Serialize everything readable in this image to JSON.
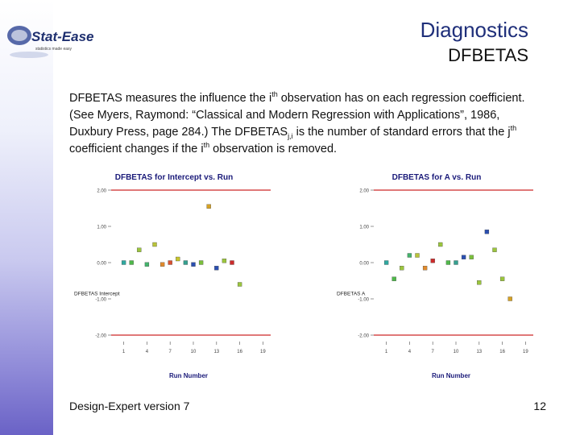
{
  "logo": {
    "name": "Stat-Ease",
    "tagline": "statistics made easy"
  },
  "header": {
    "title": "Diagnostics",
    "subtitle": "DFBETAS"
  },
  "body": {
    "p1": "DFBETAS measures the influence the i",
    "sup1": "th",
    "p2": " observation has on each regression coefficient.  (See Myers, Raymond: “Classical and Modern Regression with Applications”, 1986, Duxbury Press, page 284.)  The DFBETAS",
    "sub1": "j,i",
    "p3": " is the number of standard errors that the j",
    "sup2": "th",
    "p4": " coefficient changes if the i",
    "sup3": "th",
    "p5": " observation is removed."
  },
  "footer": {
    "left": "Design-Expert version 7",
    "page": "12"
  },
  "colors": {
    "limit_line": "#d64b4b",
    "band_top": "#ffffff",
    "band_bottom": "#6a62c6",
    "title_blue": "#1f2f7a"
  },
  "chart_data": [
    {
      "type": "scatter",
      "title": "DFBETAS for Intercept vs. Run",
      "xlabel": "Run Number",
      "ylabel": "DFBETAS Intercept",
      "xticks": [
        "1",
        "4",
        "7",
        "10",
        "13",
        "16",
        "19"
      ],
      "yticks": [
        "2.00",
        "1.00",
        "0.00",
        "-1.00",
        "-2.00"
      ],
      "ylim": [
        -2.0,
        2.0
      ],
      "limits": [
        2.0,
        -2.0
      ],
      "points": [
        {
          "x": 1,
          "y": 0.0,
          "color": "#2fa8a0"
        },
        {
          "x": 2,
          "y": 0.0,
          "color": "#4fb84a"
        },
        {
          "x": 3,
          "y": 0.35,
          "color": "#9bc53d"
        },
        {
          "x": 4,
          "y": -0.05,
          "color": "#44b36c"
        },
        {
          "x": 5,
          "y": 0.5,
          "color": "#b9c43a"
        },
        {
          "x": 6,
          "y": -0.05,
          "color": "#e08a2c"
        },
        {
          "x": 7,
          "y": 0.0,
          "color": "#d95030"
        },
        {
          "x": 8,
          "y": 0.1,
          "color": "#c6c42e"
        },
        {
          "x": 9,
          "y": 0.0,
          "color": "#35a090"
        },
        {
          "x": 10,
          "y": -0.05,
          "color": "#2b4fb0"
        },
        {
          "x": 11,
          "y": 0.0,
          "color": "#7bbf3c"
        },
        {
          "x": 12,
          "y": 1.55,
          "color": "#d6a224"
        },
        {
          "x": 13,
          "y": -0.15,
          "color": "#2b4fb0"
        },
        {
          "x": 14,
          "y": 0.05,
          "color": "#9bc53d"
        },
        {
          "x": 15,
          "y": 0.0,
          "color": "#cc2b2b"
        },
        {
          "x": 16,
          "y": -0.6,
          "color": "#9bc53d"
        }
      ]
    },
    {
      "type": "scatter",
      "title": "DFBETAS for A vs. Run",
      "xlabel": "Run Number",
      "ylabel": "DFBETAS A",
      "xticks": [
        "1",
        "4",
        "7",
        "10",
        "13",
        "16",
        "19"
      ],
      "yticks": [
        "2.00",
        "1.00",
        "0.00",
        "-1.00",
        "-2.00"
      ],
      "ylim": [
        -2.0,
        2.0
      ],
      "limits": [
        2.0,
        -2.0
      ],
      "points": [
        {
          "x": 1,
          "y": 0.0,
          "color": "#2fa8a0"
        },
        {
          "x": 2,
          "y": -0.45,
          "color": "#4fb84a"
        },
        {
          "x": 3,
          "y": -0.15,
          "color": "#9bc53d"
        },
        {
          "x": 4,
          "y": 0.2,
          "color": "#44b36c"
        },
        {
          "x": 5,
          "y": 0.2,
          "color": "#b9c43a"
        },
        {
          "x": 6,
          "y": -0.15,
          "color": "#e08a2c"
        },
        {
          "x": 7,
          "y": 0.05,
          "color": "#cc2b2b"
        },
        {
          "x": 8,
          "y": 0.5,
          "color": "#9bc53d"
        },
        {
          "x": 9,
          "y": 0.0,
          "color": "#4fb84a"
        },
        {
          "x": 10,
          "y": 0.0,
          "color": "#35a090"
        },
        {
          "x": 11,
          "y": 0.15,
          "color": "#2b4fb0"
        },
        {
          "x": 12,
          "y": 0.15,
          "color": "#7bbf3c"
        },
        {
          "x": 13,
          "y": -0.55,
          "color": "#9bc53d"
        },
        {
          "x": 14,
          "y": 0.85,
          "color": "#2b4fb0"
        },
        {
          "x": 15,
          "y": 0.35,
          "color": "#9bc53d"
        },
        {
          "x": 16,
          "y": -0.45,
          "color": "#9bc53d"
        },
        {
          "x": 17,
          "y": -1.0,
          "color": "#d6a224"
        }
      ]
    }
  ]
}
